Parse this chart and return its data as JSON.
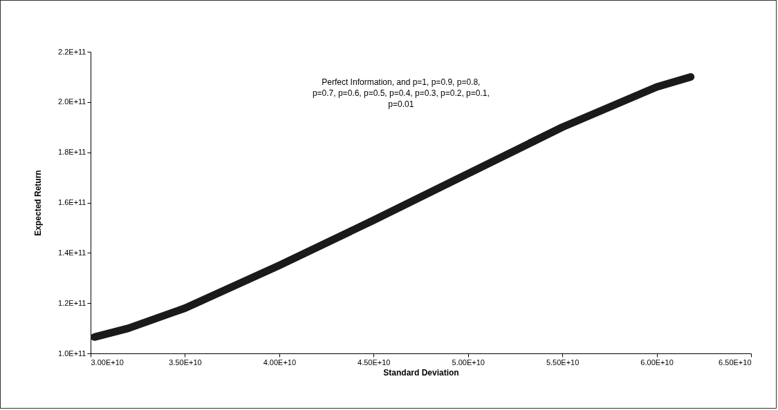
{
  "chart_data": {
    "type": "line",
    "xlabel": "Standard Deviation",
    "ylabel": "Expected Return",
    "annotations": [
      "Perfect Information, and p=1, p=0.9, p=0.8, p=0.7, p=0.6, p=0.5, p=0.4, p=0.3, p=0.2, p=0.1, p=0.01"
    ],
    "x": [
      30200000000,
      32000000000,
      35000000000,
      40000000000,
      45000000000,
      50000000000,
      55000000000,
      60000000000,
      61800000000
    ],
    "series": [
      {
        "color": "#1a1a1a",
        "values": [
          106500000000,
          110000000000,
          118000000000,
          135000000000,
          153000000000,
          171500000000,
          190000000000,
          206000000000,
          210000000000
        ]
      }
    ],
    "xlim": [
      30000000000,
      65000000000
    ],
    "xticks": [
      {
        "value": 30000000000,
        "label": "3.00E+10"
      },
      {
        "value": 35000000000,
        "label": "3.50E+10"
      },
      {
        "value": 40000000000,
        "label": "4.00E+10"
      },
      {
        "value": 45000000000,
        "label": "4.50E+10"
      },
      {
        "value": 50000000000,
        "label": "5.00E+10"
      },
      {
        "value": 55000000000,
        "label": "5.50E+10"
      },
      {
        "value": 60000000000,
        "label": "6.00E+10"
      },
      {
        "value": 65000000000,
        "label": "6.50E+10"
      }
    ],
    "ylim": [
      100000000000,
      220000000000
    ],
    "yticks": [
      {
        "value": 100000000000,
        "label": "1.0E+11"
      },
      {
        "value": 120000000000,
        "label": "1.2E+11"
      },
      {
        "value": 140000000000,
        "label": "1.4E+11"
      },
      {
        "value": 160000000000,
        "label": "1.6E+11"
      },
      {
        "value": 180000000000,
        "label": "1.8E+11"
      },
      {
        "value": 200000000000,
        "label": "2.0E+11"
      },
      {
        "value": 220000000000,
        "label": "2.2E+11"
      }
    ],
    "grid": false,
    "line_style": "solid"
  }
}
